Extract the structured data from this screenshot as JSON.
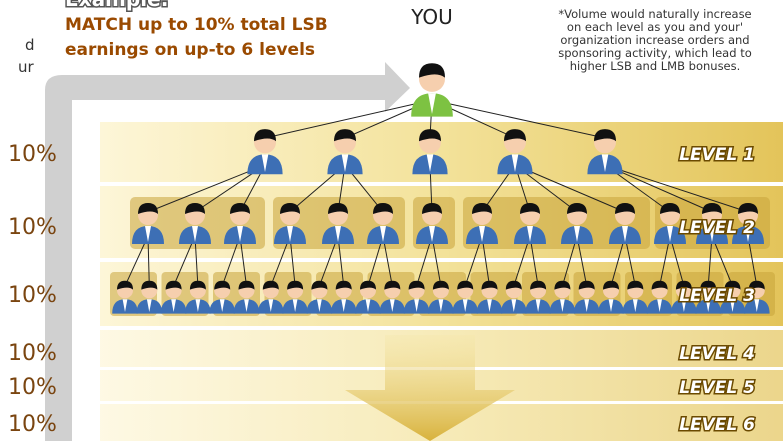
{
  "header": {
    "title": "Example:",
    "subtitle_lines": [
      "MATCH up to 10% total LSB",
      "earnings on up-to 6 levels"
    ],
    "cut_fragments": [
      "d",
      "ur"
    ]
  },
  "top": {
    "label": "YOU",
    "note_lines": [
      "*Volume would naturally increase",
      "on each level as you and your'",
      "organization increase orders and",
      "sponsoring activity, which lead to",
      "higher LSB and LMB bonuses."
    ]
  },
  "levels": [
    {
      "percent": "10%",
      "label": "LEVEL 1"
    },
    {
      "percent": "10%",
      "label": "LEVEL 2"
    },
    {
      "percent": "10%",
      "label": "LEVEL 3"
    },
    {
      "percent": "10%",
      "label": "LEVEL 4"
    },
    {
      "percent": "10%",
      "label": "LEVEL 5"
    },
    {
      "percent": "10%",
      "label": "LEVEL 6"
    }
  ]
}
